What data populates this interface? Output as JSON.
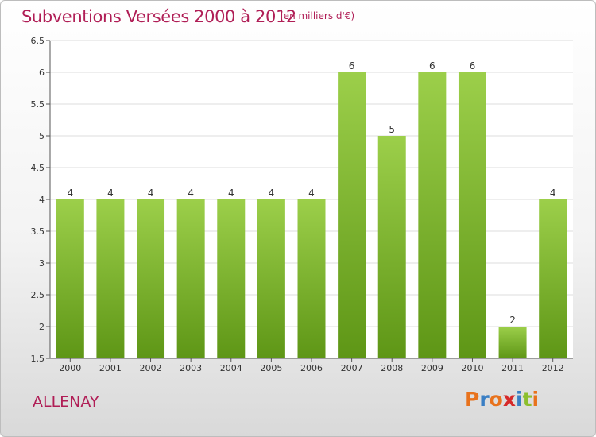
{
  "header": {
    "title": "Subventions Versées 2000 à 2012",
    "unit": "(en milliers d'€)"
  },
  "footer": {
    "commune": "ALLENAY",
    "brand_letters": [
      "P",
      "r",
      "o",
      "x",
      "i",
      "t",
      "i"
    ],
    "brand_colors": [
      "#e8721c",
      "#3a7fc4",
      "#e8721c",
      "#d62a2a",
      "#3a7fc4",
      "#8cbf2e",
      "#e8721c"
    ]
  },
  "chart_data": {
    "type": "bar",
    "categories": [
      "2000",
      "2001",
      "2002",
      "2003",
      "2004",
      "2005",
      "2006",
      "2007",
      "2008",
      "2009",
      "2010",
      "2011",
      "2012"
    ],
    "values": [
      4,
      4,
      4,
      4,
      4,
      4,
      4,
      6,
      5,
      6,
      6,
      2,
      4
    ],
    "data_labels": [
      "4",
      "4",
      "4",
      "4",
      "4",
      "4",
      "4",
      "6",
      "5",
      "6",
      "6",
      "2",
      "4"
    ],
    "ylim": [
      1.5,
      6.5
    ],
    "yticks": [
      1.5,
      2,
      2.5,
      3,
      3.5,
      4,
      4.5,
      5,
      5.5,
      6,
      6.5
    ],
    "ytick_labels": [
      "1.5",
      "2",
      "2.5",
      "3",
      "3.5",
      "4",
      "4.5",
      "5",
      "5.5",
      "6",
      "6.5"
    ],
    "grid": true,
    "bar_color_top": "#9ccf4a",
    "bar_color_bottom": "#5e9616",
    "grid_color": "#dddddd",
    "plot_background": "#ffffff"
  }
}
